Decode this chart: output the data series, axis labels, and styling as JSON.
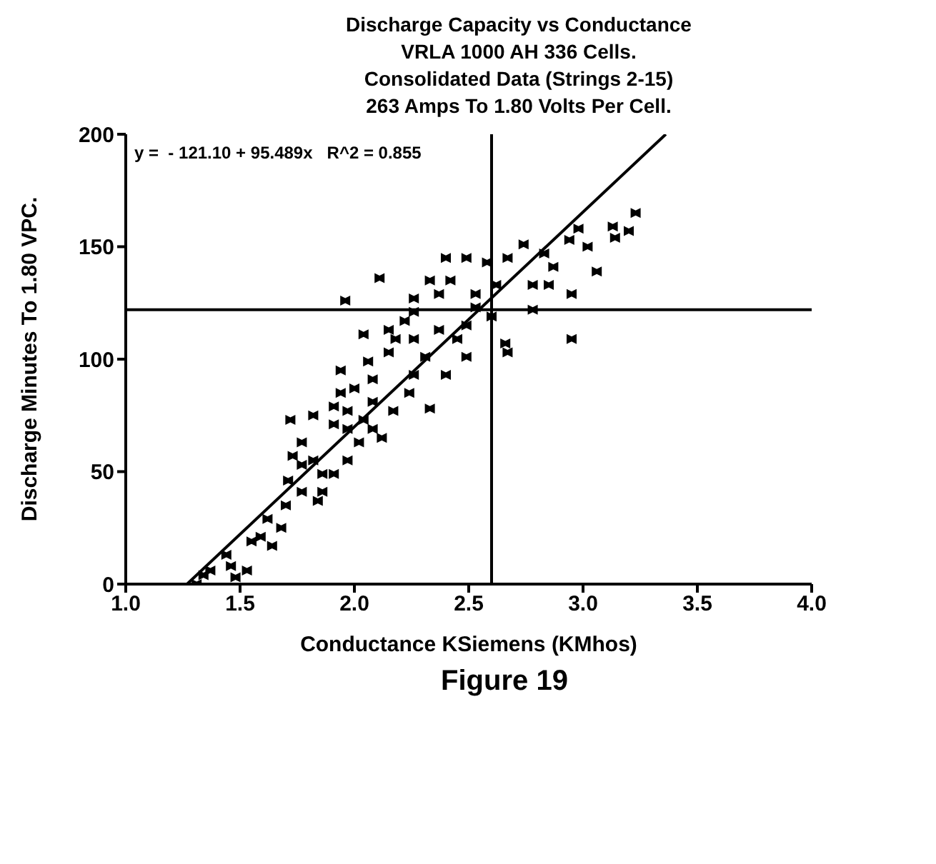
{
  "chart_data": {
    "type": "scatter",
    "title": "Discharge Capacity vs Conductance\nVRLA 1000 AH 336 Cells.\nConsolidated Data (Strings 2-15)\n263 Amps To 1.80 Volts Per Cell.",
    "xlabel": "Conductance KSiemens (KMhos)",
    "ylabel": "Discharge Minutes To 1.80 VPC.",
    "annotations": [
      "y =  - 121.10 + 95.489x   R^2 = 0.855",
      "Figure 19"
    ],
    "xlim": [
      1,
      4
    ],
    "ylim": [
      0,
      200
    ],
    "xticks": [
      {
        "value": 1,
        "label": "1.0"
      },
      {
        "value": 1.5,
        "label": "1.5"
      },
      {
        "value": 2,
        "label": "2.0"
      },
      {
        "value": 2.5,
        "label": "2.5"
      },
      {
        "value": 3,
        "label": "3.0"
      },
      {
        "value": 3.5,
        "label": "3.5"
      },
      {
        "value": 4,
        "label": "4.0"
      }
    ],
    "yticks": [
      0,
      50,
      100,
      150,
      200
    ],
    "marker": "cross",
    "ref_lines": [
      {
        "axis": "x",
        "value": 2.6,
        "label": null
      },
      {
        "axis": "y",
        "value": 122,
        "label": null
      }
    ],
    "series": [
      {
        "color": "#000000",
        "x": [
          2.11,
          1.96,
          2.95,
          2.95,
          3.06,
          3.23,
          3.2,
          3.14,
          3.13,
          2.98,
          2.94,
          3.02,
          2.78,
          2.78,
          2.67,
          2.66,
          2.49,
          2.33,
          2.4,
          1.94,
          1.94,
          1.72,
          1.84,
          1.71,
          1.31,
          1.37,
          1.46,
          1.53,
          1.55,
          1.59,
          1.68,
          1.7,
          1.77,
          1.86,
          1.82,
          1.77,
          1.91,
          1.97,
          2.04,
          2.12,
          2.08,
          2.0,
          2.06,
          2.15,
          2.04,
          2.18,
          2.26,
          2.26,
          2.37,
          2.4,
          2.49,
          2.58,
          2.67,
          2.74,
          2.83,
          2.87,
          2.85,
          2.62,
          2.53,
          2.6,
          2.49,
          2.37,
          2.31,
          2.26,
          2.24,
          2.17,
          2.08,
          2.26,
          2.45,
          2.53,
          2.42,
          2.33,
          2.22,
          2.15,
          1.97,
          1.91,
          1.86,
          1.77,
          1.73,
          1.82,
          1.91,
          1.64,
          1.44,
          1.48,
          1.34,
          1.62,
          2.02,
          2.08,
          1.97
        ],
        "values": [
          136,
          126,
          129,
          109,
          139,
          165,
          157,
          154,
          159,
          158,
          153,
          150,
          122,
          133,
          103,
          107,
          101,
          78,
          93,
          95,
          85,
          73,
          37,
          46,
          0,
          6,
          8,
          6,
          19,
          21,
          25,
          35,
          41,
          49,
          55,
          63,
          71,
          69,
          73,
          65,
          81,
          87,
          99,
          103,
          111,
          109,
          121,
          127,
          129,
          145,
          145,
          143,
          145,
          151,
          147,
          141,
          133,
          133,
          123,
          119,
          115,
          113,
          101,
          93,
          85,
          77,
          91,
          109,
          109,
          129,
          135,
          135,
          117,
          113,
          55,
          49,
          41,
          53,
          57,
          75,
          79,
          17,
          13,
          3,
          4,
          29,
          63,
          69,
          77
        ]
      },
      {
        "type": "line",
        "marker": "none",
        "color": "#000000",
        "x": [
          1.268,
          3.362
        ],
        "values": [
          0,
          200
        ]
      }
    ]
  }
}
